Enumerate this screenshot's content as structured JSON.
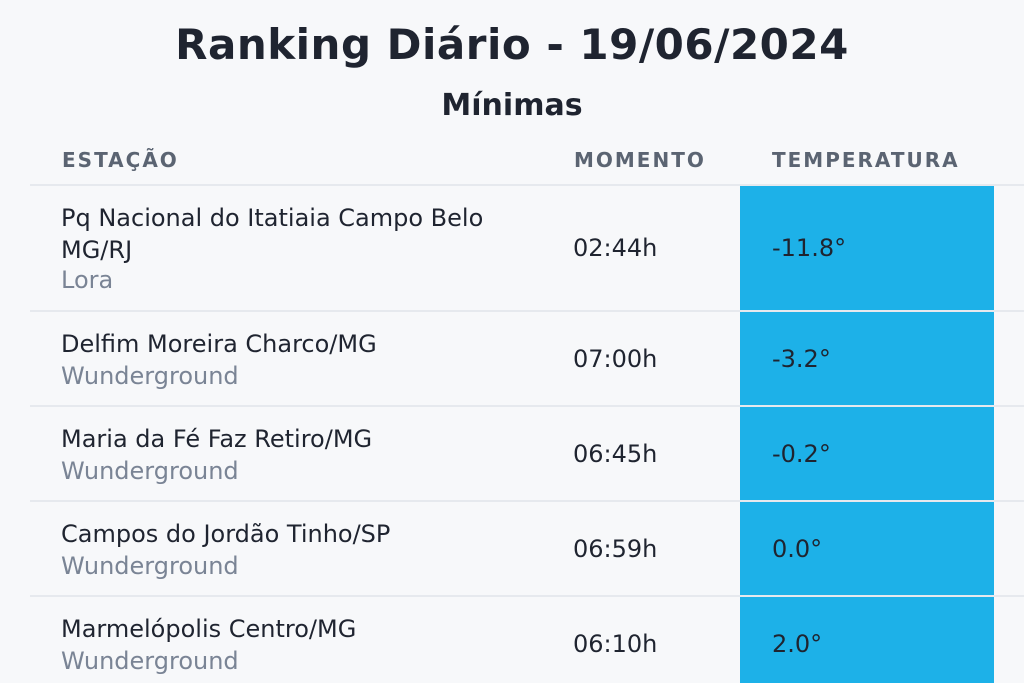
{
  "header": {
    "title": "Ranking Diário - 19/06/2024",
    "subtitle": "Mínimas"
  },
  "table": {
    "columns": [
      "ESTAÇÃO",
      "MOMENTO",
      "TEMPERATURA"
    ],
    "rows": [
      {
        "station": "Pq Nacional do Itatiaia Campo Belo MG/RJ",
        "source": "Lora",
        "moment": "02:44h",
        "temperature": "-11.8°"
      },
      {
        "station": "Delfim Moreira Charco/MG",
        "source": "Wunderground",
        "moment": "07:00h",
        "temperature": "-3.2°"
      },
      {
        "station": "Maria da Fé Faz Retiro/MG",
        "source": "Wunderground",
        "moment": "06:45h",
        "temperature": "-0.2°"
      },
      {
        "station": "Campos do Jordão Tinho/SP",
        "source": "Wunderground",
        "moment": "06:59h",
        "temperature": "0.0°"
      },
      {
        "station": "Marmelópolis Centro/MG",
        "source": "Wunderground",
        "moment": "06:10h",
        "temperature": "2.0°"
      }
    ]
  },
  "colors": {
    "temperature_cell": "#1db1e8",
    "background": "#f7f8fa"
  }
}
